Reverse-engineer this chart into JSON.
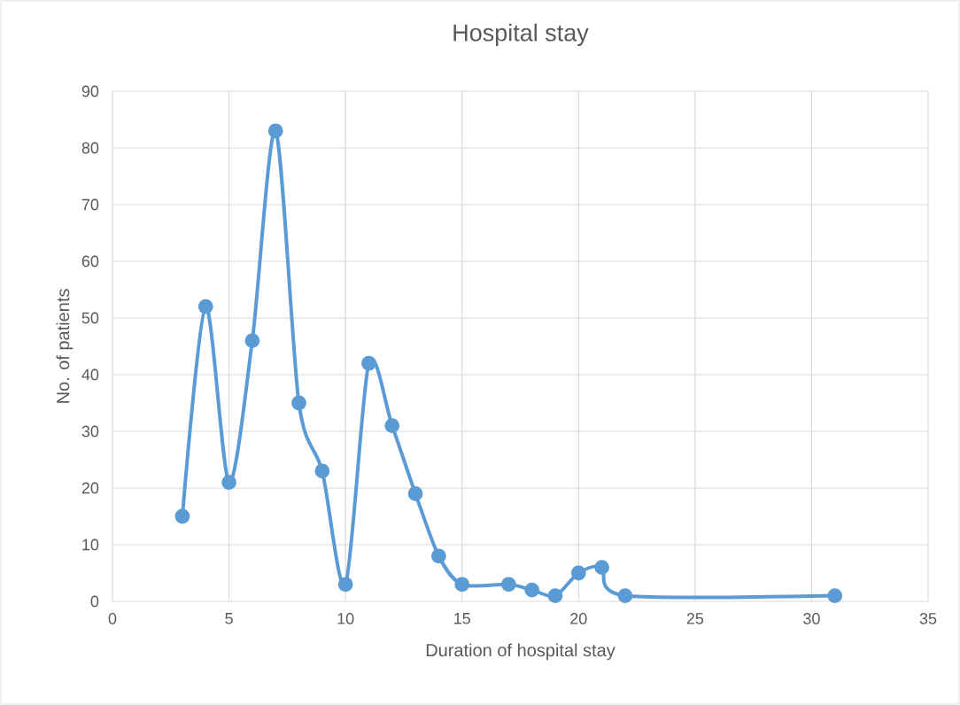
{
  "chart_data": {
    "type": "line",
    "title": "Hospital stay",
    "xlabel": "Duration of hospital stay",
    "ylabel": "No. of patients",
    "x": [
      3,
      4,
      5,
      6,
      7,
      8,
      9,
      10,
      11,
      12,
      13,
      14,
      15,
      17,
      18,
      19,
      20,
      21,
      22,
      31
    ],
    "series": [
      {
        "color": "#5b9bd5",
        "values": [
          15,
          52,
          21,
          46,
          83,
          35,
          23,
          3,
          42,
          31,
          19,
          8,
          3,
          3,
          2,
          1,
          5,
          6,
          1,
          1
        ]
      }
    ],
    "xlim": [
      0,
      35
    ],
    "xticks": [
      0,
      5,
      10,
      15,
      20,
      25,
      30,
      35
    ],
    "ylim": [
      0,
      90
    ],
    "yticks": [
      0,
      10,
      20,
      30,
      40,
      50,
      60,
      70,
      80,
      90
    ],
    "grid": true,
    "marker": "circle",
    "line_style": "solid"
  }
}
